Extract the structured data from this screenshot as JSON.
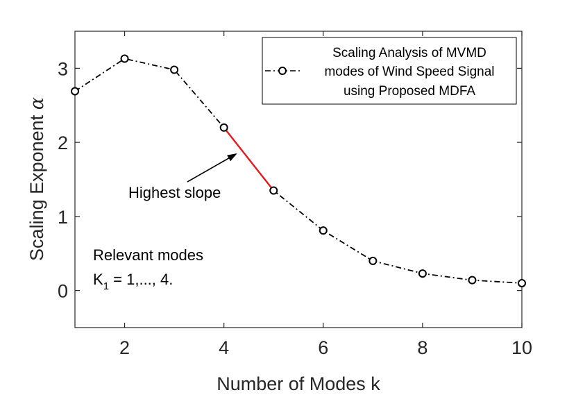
{
  "chart_data": {
    "type": "line",
    "title": "",
    "xlabel": "Number of Modes k",
    "ylabel": "Scaling Exponent",
    "ylabel_symbol": "α",
    "xlim": [
      1,
      10
    ],
    "ylim": [
      -0.5,
      3.5
    ],
    "xticks": [
      2,
      4,
      6,
      8,
      10
    ],
    "yticks": [
      0,
      1,
      2,
      3
    ],
    "grid": false,
    "legend_position": "top-right",
    "series": [
      {
        "name": "Scaling Analysis of MVMD modes of Wind Speed Signal using Proposed MDFA",
        "x": [
          1,
          2,
          3,
          4,
          5,
          6,
          7,
          8,
          9,
          10
        ],
        "values": [
          2.69,
          3.13,
          2.98,
          2.2,
          1.35,
          0.81,
          0.4,
          0.23,
          0.14,
          0.1
        ],
        "color": "#000000",
        "style": "dash-dot",
        "marker": "circle"
      }
    ],
    "highlight_segment": {
      "x": [
        4,
        5
      ],
      "color": "#e41a1c"
    },
    "legend_lines": [
      "Scaling Analysis of MVMD",
      "modes of Wind Speed Signal",
      "using Proposed MDFA"
    ],
    "annotations": {
      "arrow_label": "Highest slope",
      "note_line1": "Relevant modes",
      "note_line2_prefix": "K",
      "note_line2_sub": "1",
      "note_line2_suffix": " = 1,..., 4."
    }
  }
}
